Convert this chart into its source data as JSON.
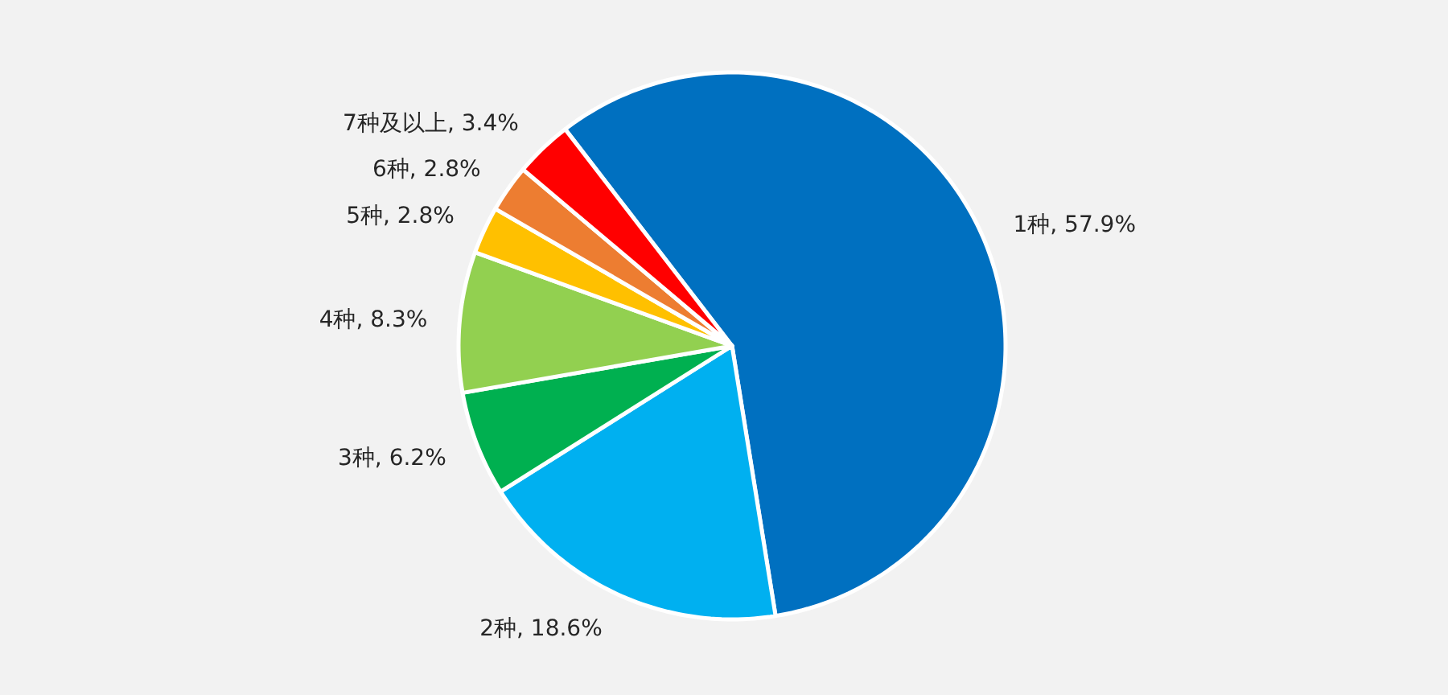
{
  "chart_data": {
    "type": "pie",
    "categories": [
      "1种",
      "2种",
      "3种",
      "4种",
      "5种",
      "6种",
      "7种及以上"
    ],
    "values": [
      57.9,
      18.6,
      6.2,
      8.3,
      2.8,
      2.8,
      3.4
    ],
    "colors": [
      "#0070c0",
      "#00b0f0",
      "#00b050",
      "#92d050",
      "#ffc000",
      "#ed7d31",
      "#ff0000"
    ],
    "value_labels": [
      ", 57.9%",
      ", 18.6%",
      ", 6.2%",
      ", 8.3%",
      ", 2.8%",
      ", 2.8%",
      ", 3.4%"
    ],
    "legend": false
  }
}
